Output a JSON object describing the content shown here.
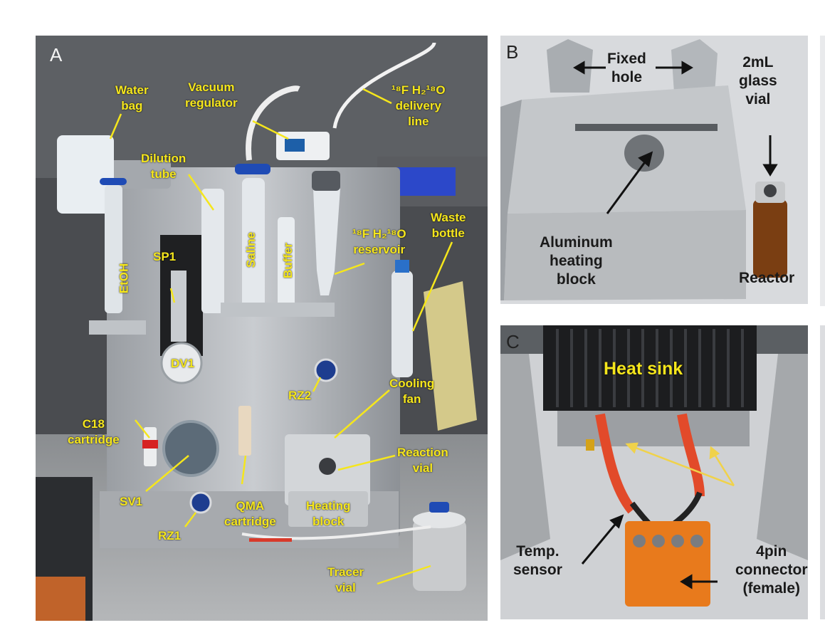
{
  "panels": {
    "a": {
      "letter": "A"
    },
    "b": {
      "letter": "B"
    },
    "c": {
      "letter": "C"
    }
  },
  "labels_a": {
    "water_bag": "Water\nbag",
    "vacuum_regulator": "Vacuum\nregulator",
    "delivery_line": "¹⁸F H₂¹⁸O\ndelivery\nline",
    "dilution_tube": "Dilution\ntube",
    "etoh": "EtOH",
    "saline": "Saline",
    "buffer": "Buffer",
    "sp1": "SP1",
    "reservoir": "¹⁸F H₂¹⁸O\nreservoir",
    "waste_bottle": "Waste\nbottle",
    "dv1": "DV1",
    "c18": "C18\ncartridge",
    "rz2": "RZ2",
    "cooling_fan": "Cooling\nfan",
    "reaction_vial": "Reaction\nvial",
    "sv1": "SV1",
    "qma": "QMA\ncartridge",
    "heating_block": "Heating\nblock",
    "rz1": "RZ1",
    "tracer_vial": "Tracer\nvial"
  },
  "labels_b": {
    "fixed_hole": "Fixed\nhole",
    "glass_vial": "2mL\nglass\nvial",
    "aluminum": "Aluminum\nheating\nblock",
    "reactor": "Reactor"
  },
  "labels_c": {
    "heat_sink": "Heat sink",
    "temp_sensor": "Temp.\nsensor",
    "connector": "4pin\nconnector\n(female)"
  },
  "colors": {
    "annotation": "#f5e61c",
    "dark_text": "#1a1a1a"
  }
}
